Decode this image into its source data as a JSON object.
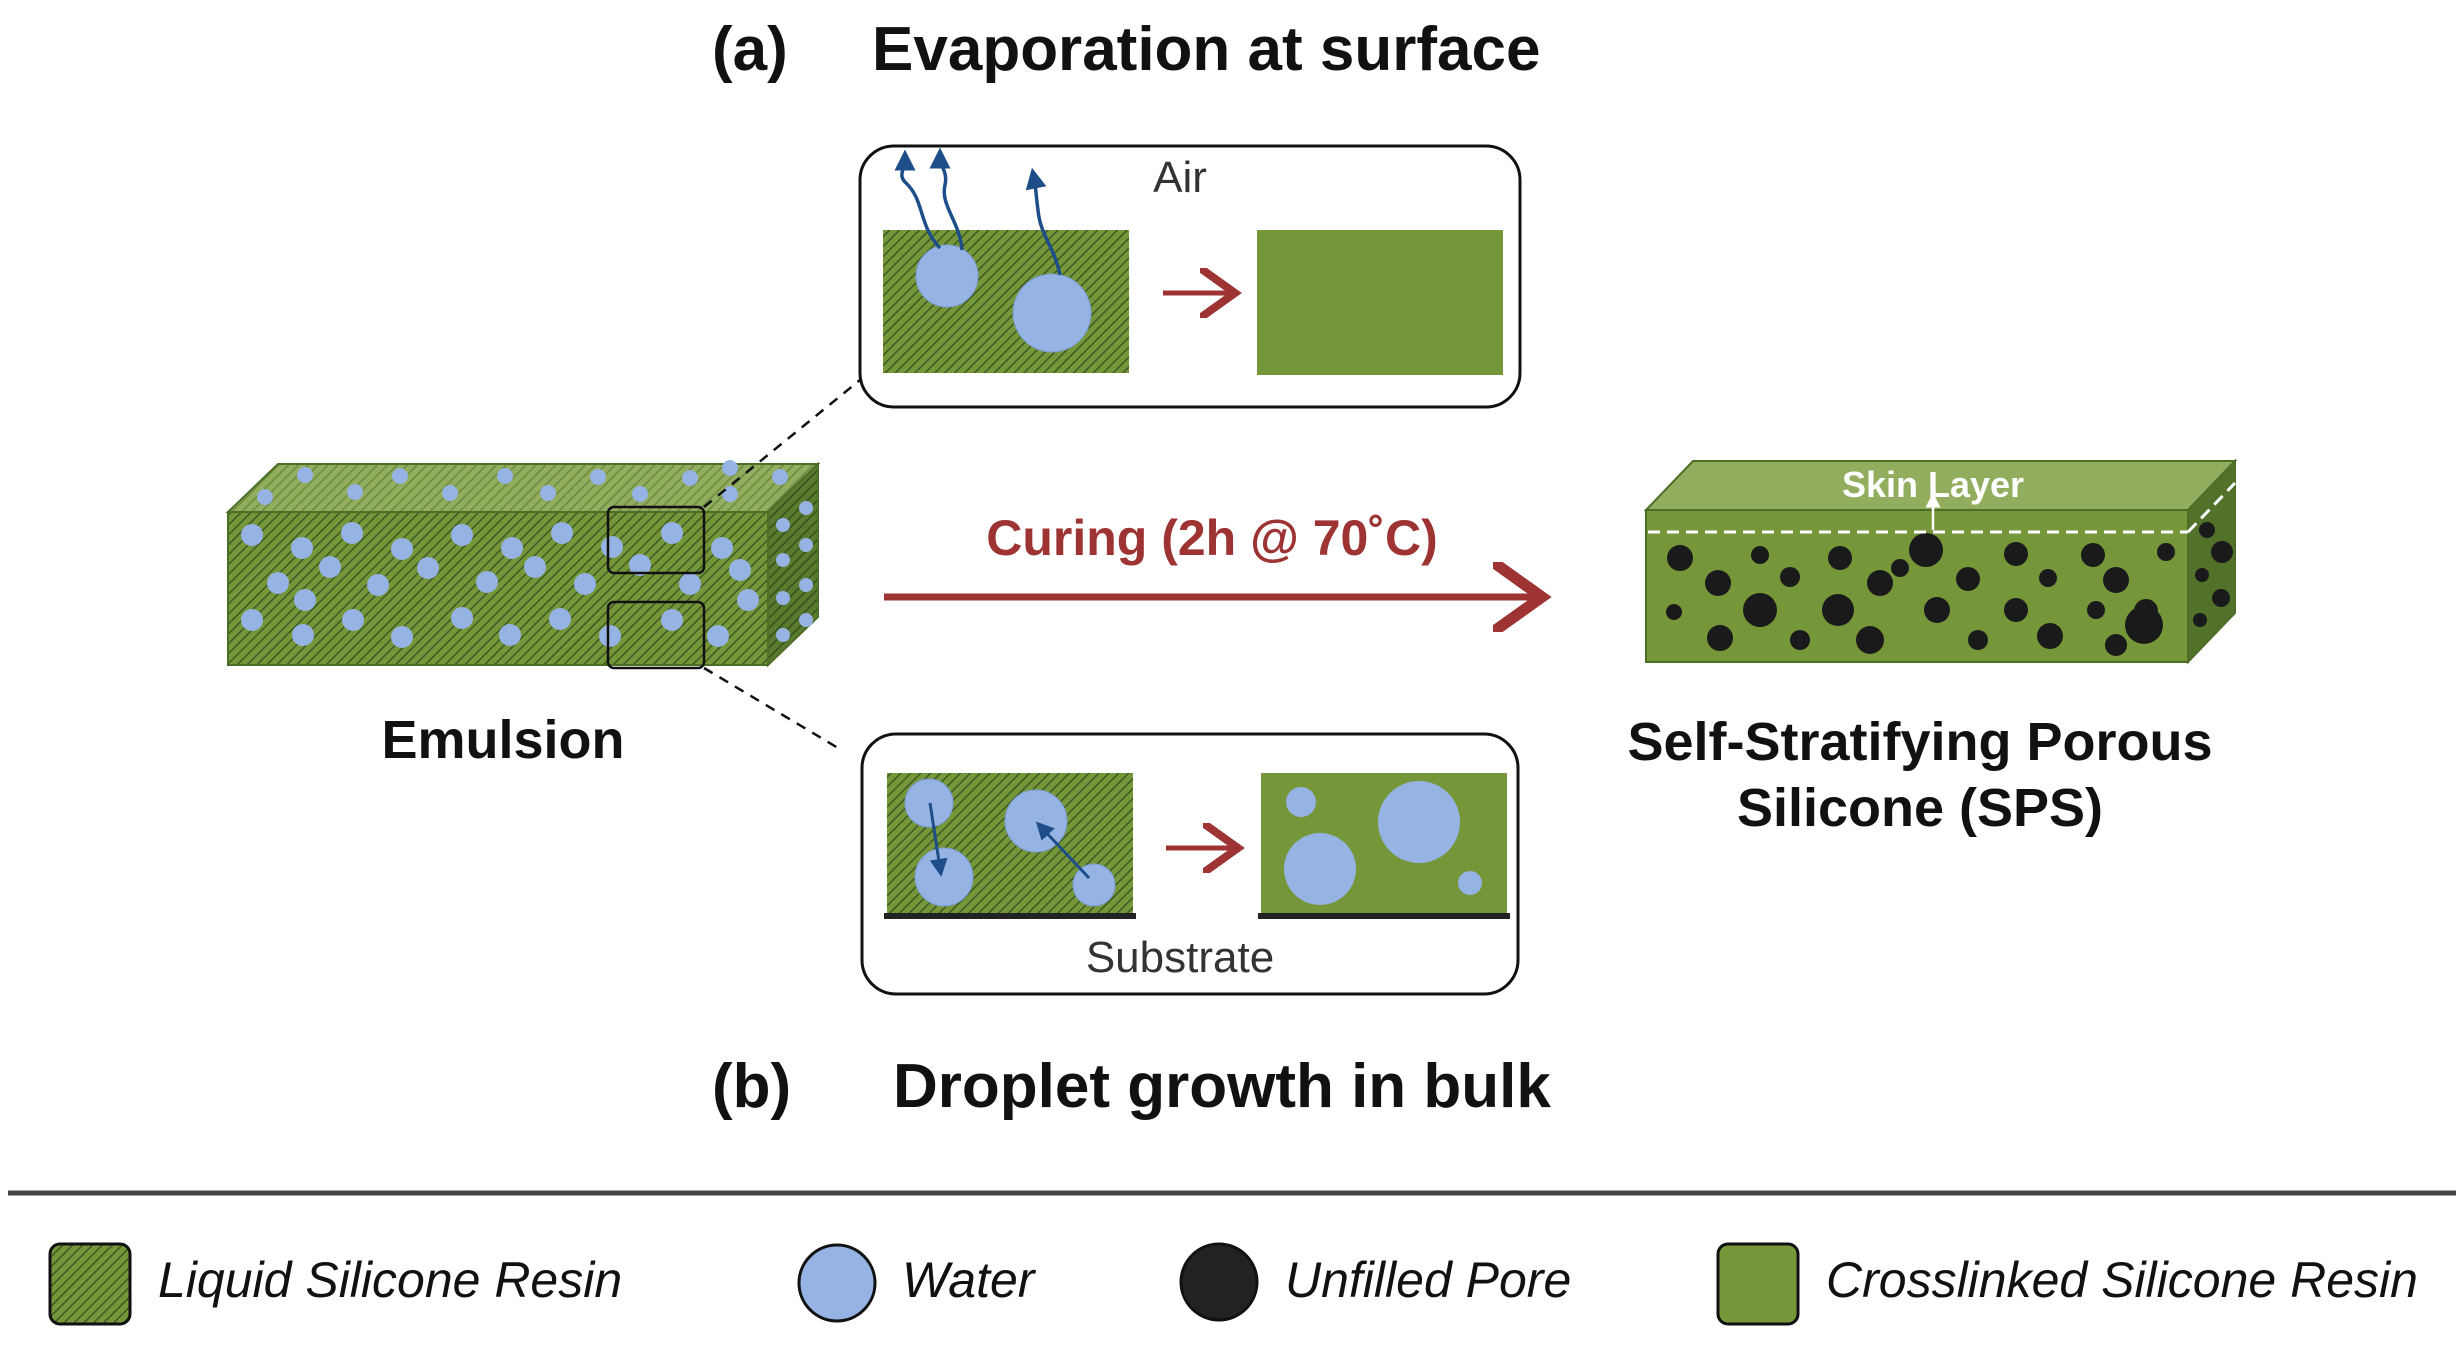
{
  "titles": {
    "a": "(a)",
    "a_text": "Evaporation at surface",
    "b": "(b)",
    "b_text": "Droplet growth in bulk"
  },
  "labels": {
    "air": "Air",
    "substrate": "Substrate",
    "curing": "Curing (2h @ 70˚C)",
    "emulsion": "Emulsion",
    "sps_line1": "Self-Stratifying Porous",
    "sps_line2": "Silicone (SPS)",
    "skin_layer": "Skin Layer"
  },
  "legend": [
    {
      "label": "Liquid Silicone Resin",
      "swatch": "hatched-square"
    },
    {
      "label": "Water",
      "swatch": "blue-circle"
    },
    {
      "label": "Unfilled Pore",
      "swatch": "black-circle"
    },
    {
      "label": "Crosslinked Silicone Resin",
      "swatch": "green-square"
    }
  ],
  "colors": {
    "resin_green": "#76963a",
    "resin_top": "#93ad5e",
    "resin_side": "#4d6e27",
    "hatch_line": "#3c5a22",
    "water_blue": "#95b3e3",
    "pore_black": "#1a1a1a",
    "arrow_red": "#9e3333",
    "arrow_blue": "#1d4e89"
  }
}
